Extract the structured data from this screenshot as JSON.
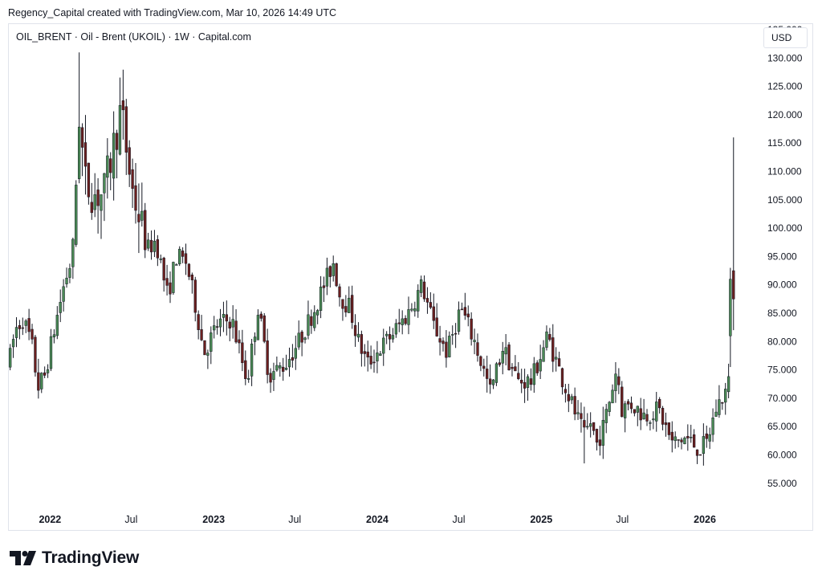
{
  "header": {
    "attribution": "Regency_Capital created with TradingView.com, Mar 10, 2026 14:49 UTC"
  },
  "legend": {
    "symbol_line": "OIL_BRENT · Oil - Brent (UKOIL) · 1W · Capital.com"
  },
  "price_scale": {
    "currency": "USD"
  },
  "brand": {
    "name": "TradingView",
    "logo_icon": "tradingview-logo-icon"
  },
  "colors": {
    "up": "#26a69a",
    "down": "#ef5350",
    "wick": "#131722",
    "up_body": "#4a8a55",
    "down_body": "#6b1f1f"
  },
  "chart_data": {
    "type": "candlestick",
    "interval": "1W",
    "y_axis": {
      "range": [
        51.0,
        136.0
      ],
      "tick_labels": [
        "55.000",
        "60.000",
        "65.000",
        "70.000",
        "75.000",
        "80.000",
        "85.000",
        "90.000",
        "95.000",
        "100.000",
        "105.000",
        "110.000",
        "115.000",
        "120.000",
        "125.000",
        "130.000",
        "135.000"
      ],
      "ticks": [
        55,
        60,
        65,
        70,
        75,
        80,
        85,
        90,
        95,
        100,
        105,
        110,
        115,
        120,
        125,
        130,
        135
      ]
    },
    "x_axis": {
      "range": [
        "2021-10-01",
        "2026-03-10"
      ],
      "tick_labels": [
        "2022",
        "Jul",
        "2023",
        "Jul",
        "2024",
        "Jul",
        "2025",
        "Jul",
        "2026"
      ],
      "tick_dates": [
        "2022-01-01",
        "2022-07-01",
        "2023-01-01",
        "2023-07-01",
        "2024-01-01",
        "2024-07-01",
        "2025-01-01",
        "2025-07-01",
        "2026-01-01"
      ]
    },
    "grid": false,
    "anchors": [
      [
        "2021-10-01",
        76
      ],
      [
        "2021-10-15",
        82
      ],
      [
        "2021-11-01",
        84
      ],
      [
        "2021-11-20",
        80
      ],
      [
        "2021-12-05",
        72
      ],
      [
        "2021-12-20",
        74
      ],
      [
        "2022-01-10",
        82
      ],
      [
        "2022-02-01",
        90
      ],
      [
        "2022-02-20",
        95
      ],
      [
        "2022-03-07",
        120
      ],
      [
        "2022-03-20",
        108
      ],
      [
        "2022-04-10",
        106
      ],
      [
        "2022-05-01",
        106
      ],
      [
        "2022-06-08",
        121
      ],
      [
        "2022-06-20",
        114
      ],
      [
        "2022-07-05",
        106
      ],
      [
        "2022-07-20",
        102
      ],
      [
        "2022-08-05",
        96
      ],
      [
        "2022-08-25",
        98
      ],
      [
        "2022-09-20",
        88
      ],
      [
        "2022-10-10",
        95
      ],
      [
        "2022-11-01",
        94
      ],
      [
        "2022-11-25",
        85
      ],
      [
        "2022-12-10",
        78
      ],
      [
        "2023-01-10",
        83
      ],
      [
        "2023-02-10",
        84
      ],
      [
        "2023-03-17",
        73
      ],
      [
        "2023-04-10",
        86
      ],
      [
        "2023-05-05",
        74
      ],
      [
        "2023-06-10",
        76
      ],
      [
        "2023-07-10",
        80
      ],
      [
        "2023-08-10",
        85
      ],
      [
        "2023-09-25",
        94
      ],
      [
        "2023-10-10",
        88
      ],
      [
        "2023-11-01",
        86
      ],
      [
        "2023-11-20",
        80
      ],
      [
        "2023-12-10",
        76
      ],
      [
        "2024-01-10",
        79
      ],
      [
        "2024-02-10",
        82
      ],
      [
        "2024-03-10",
        85
      ],
      [
        "2024-04-10",
        90
      ],
      [
        "2024-05-05",
        83
      ],
      [
        "2024-06-05",
        78
      ],
      [
        "2024-07-05",
        86
      ],
      [
        "2024-08-05",
        80
      ],
      [
        "2024-09-10",
        71
      ],
      [
        "2024-10-07",
        79
      ],
      [
        "2024-11-10",
        73
      ],
      [
        "2024-12-10",
        73
      ],
      [
        "2025-01-15",
        81
      ],
      [
        "2025-02-10",
        75
      ],
      [
        "2025-03-05",
        70
      ],
      [
        "2025-04-08",
        63
      ],
      [
        "2025-04-20",
        66
      ],
      [
        "2025-05-05",
        62
      ],
      [
        "2025-05-20",
        65
      ],
      [
        "2025-06-20",
        76
      ],
      [
        "2025-06-27",
        68
      ],
      [
        "2025-07-20",
        69
      ],
      [
        "2025-08-20",
        67
      ],
      [
        "2025-09-20",
        68
      ],
      [
        "2025-10-20",
        62
      ],
      [
        "2025-11-20",
        63
      ],
      [
        "2025-12-20",
        61
      ],
      [
        "2026-01-05",
        62
      ],
      [
        "2026-01-25",
        68
      ],
      [
        "2026-02-15",
        71
      ],
      [
        "2026-02-25",
        73
      ]
    ],
    "last_candles": [
      {
        "date": "2026-02-27",
        "open": 81,
        "high": 93,
        "low": 75.5,
        "close": 91
      },
      {
        "date": "2026-03-06",
        "open": 92.5,
        "high": 116,
        "low": 82,
        "close": 87.5
      }
    ],
    "extremes": {
      "high": 131,
      "low": 58.5
    }
  }
}
